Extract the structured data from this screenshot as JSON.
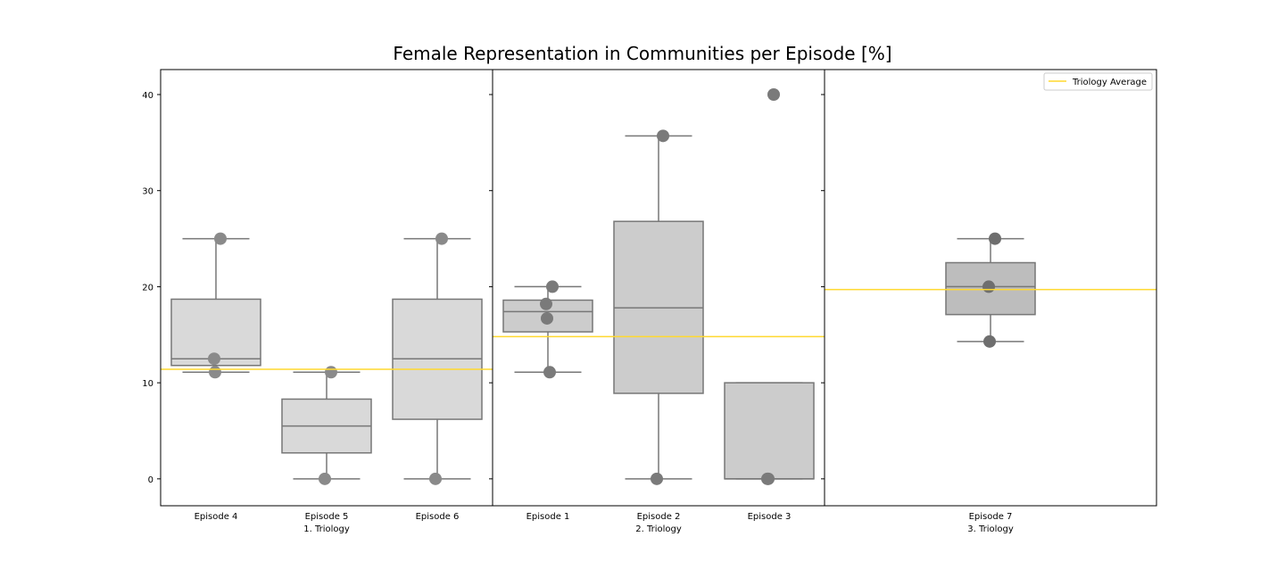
{
  "chart_data": {
    "type": "box",
    "title": "Female Representation in Communities per Episode [%]",
    "ylim": [
      -2.8,
      42.6
    ],
    "yticks": [
      0,
      10,
      20,
      30,
      40
    ],
    "legend": {
      "label": "Triology Average",
      "color": "#ffd92f",
      "placement": "top-right"
    },
    "panels": [
      {
        "xlabel": "1. Triology",
        "average": 11.4,
        "box_color": "#d9d9d9",
        "point_color": "#8a8a8a",
        "boxes": [
          {
            "category": "Episode 4",
            "whisker_low": 11.1,
            "q1": 11.8,
            "median": 12.5,
            "q3": 18.7,
            "whisker_high": 25.0,
            "points": [
              25.0,
              12.5,
              11.1
            ]
          },
          {
            "category": "Episode 5",
            "whisker_low": 0.0,
            "q1": 2.7,
            "median": 5.5,
            "q3": 8.3,
            "whisker_high": 11.1,
            "points": [
              11.1,
              0.0
            ]
          },
          {
            "category": "Episode 6",
            "whisker_low": 0.0,
            "q1": 6.2,
            "median": 12.5,
            "q3": 18.7,
            "whisker_high": 25.0,
            "points": [
              25.0,
              0.0
            ]
          }
        ]
      },
      {
        "xlabel": "2. Triology",
        "average": 14.8,
        "box_color": "#cccccc",
        "point_color": "#7a7a7a",
        "boxes": [
          {
            "category": "Episode 1",
            "whisker_low": 11.1,
            "q1": 15.3,
            "median": 17.4,
            "q3": 18.6,
            "whisker_high": 20.0,
            "points": [
              20.0,
              18.2,
              16.7,
              11.1
            ]
          },
          {
            "category": "Episode 2",
            "whisker_low": 0.0,
            "q1": 8.9,
            "median": 17.8,
            "q3": 26.8,
            "whisker_high": 35.7,
            "points": [
              35.7,
              0.0
            ]
          },
          {
            "category": "Episode 3",
            "whisker_low": 0.0,
            "q1": 0.0,
            "median": 0.0,
            "q3": 10.0,
            "whisker_high": 10.0,
            "points": [
              40.0,
              0.0,
              0.0
            ]
          }
        ]
      },
      {
        "xlabel": "3. Triology",
        "average": 19.7,
        "box_color": "#bdbdbd",
        "point_color": "#6e6e6e",
        "boxes": [
          {
            "category": "Episode 7",
            "whisker_low": 14.3,
            "q1": 17.1,
            "median": 20.0,
            "q3": 22.5,
            "whisker_high": 25.0,
            "points": [
              25.0,
              20.0,
              14.3
            ]
          }
        ]
      }
    ]
  }
}
